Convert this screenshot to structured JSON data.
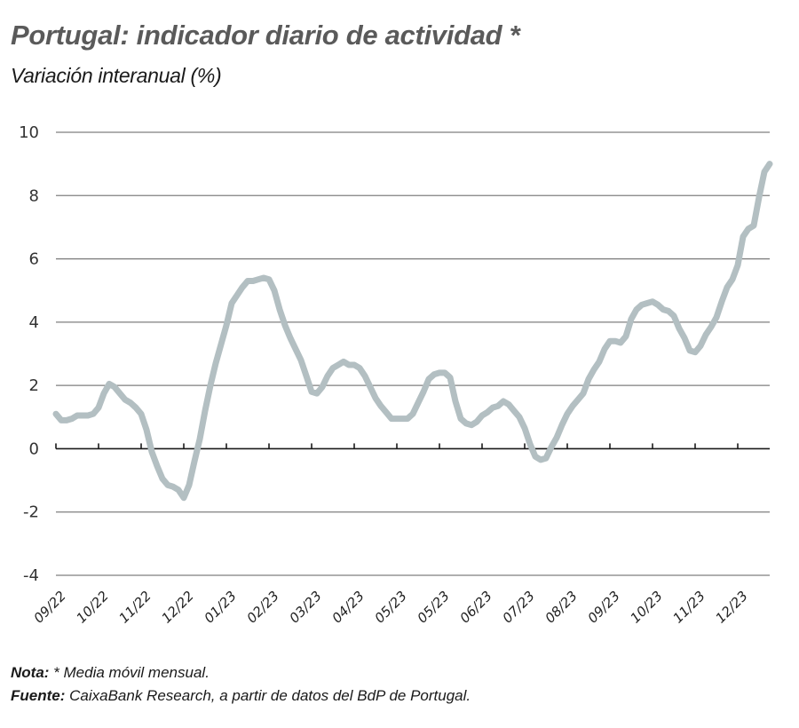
{
  "header": {
    "title": "Portugal: indicador diario de actividad *",
    "subtitle": "Variación interanual (%)"
  },
  "footer": {
    "note_label": "Nota:",
    "note_text": " * Media móvil mensual.",
    "source_label": "Fuente:",
    "source_text": " CaixaBank Research, a partir de datos del BdP de Portugal."
  },
  "colors": {
    "line": "#b3bfc2",
    "grid": "#7f7f7f",
    "axis": "#1a1a1a"
  },
  "chart_data": {
    "type": "line",
    "title": "Portugal: indicador diario de actividad *",
    "subtitle": "Variación interanual (%)",
    "xlabel": "",
    "ylabel": "",
    "ylim": [
      -4,
      10
    ],
    "yticks": [
      10,
      8,
      6,
      4,
      2,
      0,
      -2,
      -4
    ],
    "xlim": [
      0,
      16.75
    ],
    "x_unit": "months since 09/22 tick",
    "xtick_labels": [
      "09/22",
      "10/22",
      "11/22",
      "12/22",
      "01/23",
      "02/23",
      "03/23",
      "04/23",
      "05/23",
      "05/23",
      "06/23",
      "07/23",
      "08/23",
      "09/23",
      "10/23",
      "11/23",
      "12/23"
    ],
    "grid": true,
    "legend": "none",
    "series": [
      {
        "name": "Indicador diario de actividad (media móvil mensual)",
        "x_step": 0.125,
        "values": [
          1.1,
          0.9,
          0.9,
          0.95,
          1.05,
          1.05,
          1.05,
          1.1,
          1.3,
          1.75,
          2.05,
          1.95,
          1.75,
          1.55,
          1.45,
          1.3,
          1.1,
          0.6,
          -0.1,
          -0.55,
          -0.95,
          -1.15,
          -1.2,
          -1.3,
          -1.55,
          -1.15,
          -0.4,
          0.3,
          1.2,
          2.0,
          2.7,
          3.3,
          3.9,
          4.6,
          4.85,
          5.1,
          5.3,
          5.3,
          5.35,
          5.4,
          5.35,
          5.0,
          4.4,
          3.9,
          3.5,
          3.15,
          2.8,
          2.3,
          1.8,
          1.75,
          1.95,
          2.3,
          2.55,
          2.65,
          2.75,
          2.65,
          2.65,
          2.55,
          2.3,
          1.95,
          1.6,
          1.35,
          1.15,
          0.95,
          0.95,
          0.95,
          0.95,
          1.1,
          1.45,
          1.8,
          2.2,
          2.35,
          2.4,
          2.4,
          2.25,
          1.5,
          0.95,
          0.8,
          0.75,
          0.85,
          1.05,
          1.15,
          1.3,
          1.35,
          1.5,
          1.4,
          1.2,
          1.0,
          0.65,
          0.15,
          -0.25,
          -0.35,
          -0.3,
          0.05,
          0.35,
          0.75,
          1.1,
          1.35,
          1.55,
          1.75,
          2.2,
          2.5,
          2.75,
          3.15,
          3.4,
          3.4,
          3.35,
          3.55,
          4.1,
          4.4,
          4.55,
          4.6,
          4.65,
          4.55,
          4.4,
          4.35,
          4.2,
          3.8,
          3.5,
          3.1,
          3.05,
          3.25,
          3.6,
          3.85,
          4.15,
          4.65,
          5.1,
          5.35,
          5.8,
          6.7,
          6.95,
          7.05,
          7.95,
          8.75,
          9.0
        ]
      }
    ]
  }
}
